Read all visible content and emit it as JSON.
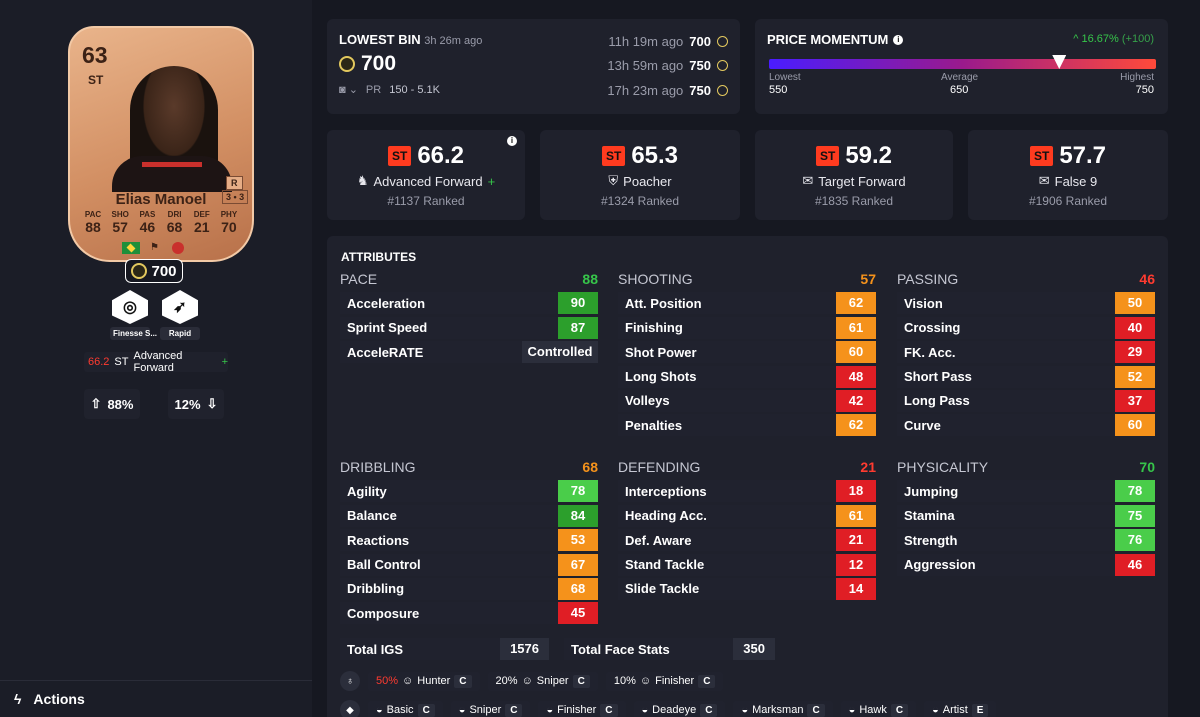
{
  "card": {
    "rating": "63",
    "position": "ST",
    "name": "Elias Manoel",
    "weak_foot": "R",
    "skill_moves": "3 • 3",
    "stats": [
      {
        "label": "PAC",
        "value": "88"
      },
      {
        "label": "SHO",
        "value": "57"
      },
      {
        "label": "PAS",
        "value": "46"
      },
      {
        "label": "DRI",
        "value": "68"
      },
      {
        "label": "DEF",
        "value": "21"
      },
      {
        "label": "PHY",
        "value": "70"
      }
    ],
    "price": "700",
    "colors": {
      "card_base": "#d28f63",
      "text": "#3c2216"
    }
  },
  "playstyles": [
    {
      "label": "Finesse S...",
      "icon": "finesse-shot-icon"
    },
    {
      "label": "Rapid",
      "icon": "rapid-icon"
    }
  ],
  "role_badge": {
    "score": "66.2",
    "position": "ST",
    "role": "Advanced Forward",
    "plus": "+"
  },
  "work_rates": {
    "attack": "88%",
    "defense": "12%"
  },
  "actions_label": "Actions",
  "lowest_bin": {
    "title": "LOWEST BIN",
    "age": "3h 26m ago",
    "price": "700",
    "platform": "PR",
    "range": "150 - 5.1K",
    "history": [
      {
        "ago": "11h 19m ago",
        "price": "700"
      },
      {
        "ago": "13h 59m ago",
        "price": "750"
      },
      {
        "ago": "17h 23m ago",
        "price": "750"
      }
    ]
  },
  "momentum": {
    "title": "PRICE MOMENTUM",
    "change": "^ 16.67%",
    "delta": "(+100)",
    "lowest_label": "Lowest",
    "lowest": "550",
    "average_label": "Average",
    "average": "650",
    "highest_label": "Highest",
    "highest": "750",
    "current_value": 700
  },
  "roles": [
    {
      "pos": "ST",
      "score": "66.2",
      "name": "Advanced Forward",
      "plus": "+",
      "rank": "#1137 Ranked",
      "icon": "advanced-forward-icon"
    },
    {
      "pos": "ST",
      "score": "65.3",
      "name": "Poacher",
      "plus": "",
      "rank": "#1324 Ranked",
      "icon": "poacher-icon"
    },
    {
      "pos": "ST",
      "score": "59.2",
      "name": "Target Forward",
      "plus": "",
      "rank": "#1835 Ranked",
      "icon": "target-forward-icon"
    },
    {
      "pos": "ST",
      "score": "57.7",
      "name": "False 9",
      "plus": "",
      "rank": "#1906 Ranked",
      "icon": "false-9-icon"
    }
  ],
  "attributes_title": "ATTRIBUTES",
  "categories": [
    {
      "name": "PACE",
      "total": "88",
      "total_color": "#36c54a",
      "rows": [
        {
          "n": "Acceleration",
          "v": "90",
          "c": "c-green"
        },
        {
          "n": "Sprint Speed",
          "v": "87",
          "c": "c-green"
        },
        {
          "n": "AcceleRATE",
          "v": "Controlled",
          "c": "c-gray"
        }
      ]
    },
    {
      "name": "SHOOTING",
      "total": "57",
      "total_color": "#f5921b",
      "rows": [
        {
          "n": "Att. Position",
          "v": "62",
          "c": "c-orange"
        },
        {
          "n": "Finishing",
          "v": "61",
          "c": "c-orange"
        },
        {
          "n": "Shot Power",
          "v": "60",
          "c": "c-orange"
        },
        {
          "n": "Long Shots",
          "v": "48",
          "c": "c-red"
        },
        {
          "n": "Volleys",
          "v": "42",
          "c": "c-red"
        },
        {
          "n": "Penalties",
          "v": "62",
          "c": "c-orange"
        }
      ]
    },
    {
      "name": "PASSING",
      "total": "46",
      "total_color": "#ff3b30",
      "rows": [
        {
          "n": "Vision",
          "v": "50",
          "c": "c-orange"
        },
        {
          "n": "Crossing",
          "v": "40",
          "c": "c-red"
        },
        {
          "n": "FK. Acc.",
          "v": "29",
          "c": "c-red"
        },
        {
          "n": "Short Pass",
          "v": "52",
          "c": "c-orange"
        },
        {
          "n": "Long Pass",
          "v": "37",
          "c": "c-red"
        },
        {
          "n": "Curve",
          "v": "60",
          "c": "c-orange"
        }
      ]
    },
    {
      "name": "DRIBBLING",
      "total": "68",
      "total_color": "#f5921b",
      "rows": [
        {
          "n": "Agility",
          "v": "78",
          "c": "c-lgreen"
        },
        {
          "n": "Balance",
          "v": "84",
          "c": "c-green"
        },
        {
          "n": "Reactions",
          "v": "53",
          "c": "c-orange"
        },
        {
          "n": "Ball Control",
          "v": "67",
          "c": "c-orange"
        },
        {
          "n": "Dribbling",
          "v": "68",
          "c": "c-orange"
        },
        {
          "n": "Composure",
          "v": "45",
          "c": "c-red"
        }
      ]
    },
    {
      "name": "DEFENDING",
      "total": "21",
      "total_color": "#ff3b30",
      "rows": [
        {
          "n": "Interceptions",
          "v": "18",
          "c": "c-red"
        },
        {
          "n": "Heading Acc.",
          "v": "61",
          "c": "c-orange"
        },
        {
          "n": "Def. Aware",
          "v": "21",
          "c": "c-red"
        },
        {
          "n": "Stand Tackle",
          "v": "12",
          "c": "c-red"
        },
        {
          "n": "Slide Tackle",
          "v": "14",
          "c": "c-red"
        }
      ]
    },
    {
      "name": "PHYSICALITY",
      "total": "70",
      "total_color": "#36c54a",
      "rows": [
        {
          "n": "Jumping",
          "v": "78",
          "c": "c-lgreen"
        },
        {
          "n": "Stamina",
          "v": "75",
          "c": "c-lgreen"
        },
        {
          "n": "Strength",
          "v": "76",
          "c": "c-lgreen"
        },
        {
          "n": "Aggression",
          "v": "46",
          "c": "c-red"
        }
      ]
    }
  ],
  "totals": [
    {
      "label": "Total IGS",
      "value": "1576"
    },
    {
      "label": "Total Face Stats",
      "value": "350"
    }
  ],
  "chem_row1": [
    {
      "pct": "50%",
      "name": "Hunter",
      "k": "C"
    },
    {
      "pct": "20%",
      "name": "Sniper",
      "k": "C"
    },
    {
      "pct": "10%",
      "name": "Finisher",
      "k": "C"
    }
  ],
  "chem_row2": [
    {
      "name": "Basic",
      "k": "C"
    },
    {
      "name": "Sniper",
      "k": "C"
    },
    {
      "name": "Finisher",
      "k": "C"
    },
    {
      "name": "Deadeye",
      "k": "C"
    },
    {
      "name": "Marksman",
      "k": "C"
    },
    {
      "name": "Hawk",
      "k": "C"
    },
    {
      "name": "Artist",
      "k": "E"
    }
  ]
}
